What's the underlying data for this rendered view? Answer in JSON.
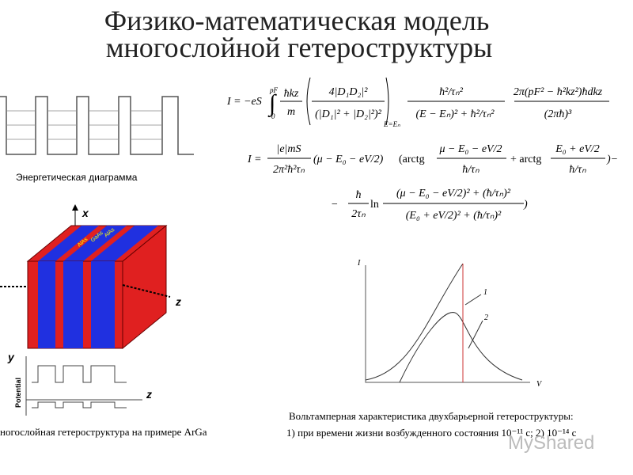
{
  "header": {
    "title_line1": "Физико-математическая модель",
    "title_line2": "многослойной гетероструктуры"
  },
  "energy_diagram": {
    "caption": "Энергетическая диаграмма"
  },
  "structure": {
    "axis_x": "x",
    "axis_z": "z",
    "axis_y": "y",
    "axis_z2": "z",
    "potential": "Potential",
    "layer_labels": [
      "AlAs",
      "GaAs",
      "AlAs"
    ],
    "caption": "ногослойная гетероструктура на примере ArGa"
  },
  "formula1": {
    "lhs": "I = −eS",
    "integral": "∫",
    "upper": "pF",
    "lower": "0",
    "f1_num": "ħkz",
    "f1_den": "m",
    "f2_num": "4|D₁D₂|²",
    "f2_den": "(|D₁|² + |D₂|²)²",
    "sub": "E=Eₙ",
    "f3_num": "ħ²/τₙ²",
    "f3_den": "(E − Eₙ)² + ħ²/τₙ²",
    "f4_num": "2π(pF² − ħ²kz²)ħdkz",
    "f4_den": "(2πħ)³"
  },
  "formula2": {
    "lhs": "I =",
    "f1_num": "|e|mS",
    "f1_den": "2π²ħ²τₙ",
    "term": "(μ − E₀ − eV/2)",
    "arctg1": "(arctg",
    "f2_num": "μ − E₀ − eV/2",
    "f2_den": "ħ/τₙ",
    "arctg2": "+ arctg",
    "f3_num": "E₀ + eV/2",
    "f3_den": "ħ/τₙ",
    "end": ")−"
  },
  "formula3": {
    "minus": "−",
    "f1_num": "ħ",
    "f1_den": "2τₙ",
    "ln": "ln",
    "f2_num": "(μ − E₀ − eV/2)² + (ħ/τₙ)²",
    "f2_den": "(E₀ + eV/2)² + (ħ/τₙ)²",
    "end": ")"
  },
  "iv_graph": {
    "y_label": "I",
    "x_label": "V",
    "curve1": "1",
    "curve2": "2",
    "caption_line1": "Вольтамперная характеристика двухбарьерной гетероструктуры:",
    "caption_line2": "1) при времени жизни возбужденного состояния  10⁻¹¹ с; 2) 10⁻¹⁴ с"
  },
  "watermark": "MyShared"
}
